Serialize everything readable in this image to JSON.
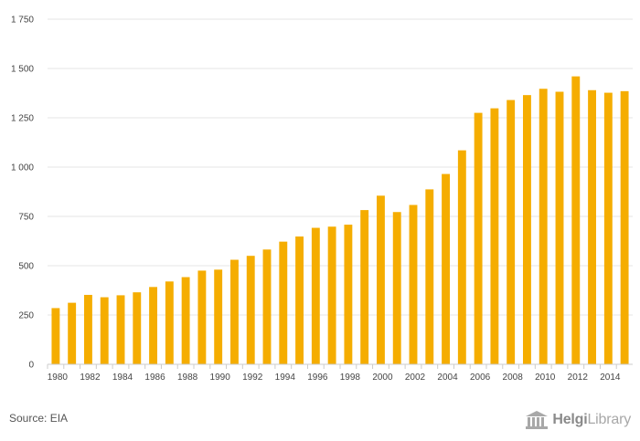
{
  "chart_data": {
    "type": "bar",
    "x": [
      1980,
      1981,
      1982,
      1983,
      1984,
      1985,
      1986,
      1987,
      1988,
      1989,
      1990,
      1991,
      1992,
      1993,
      1994,
      1995,
      1996,
      1997,
      1998,
      1999,
      2000,
      2001,
      2002,
      2003,
      2004,
      2005,
      2006,
      2007,
      2008,
      2009,
      2010,
      2011,
      2012,
      2013,
      2014,
      2015
    ],
    "values": [
      285,
      312,
      352,
      340,
      350,
      365,
      392,
      420,
      442,
      475,
      480,
      530,
      550,
      582,
      622,
      648,
      692,
      698,
      708,
      782,
      855,
      772,
      808,
      887,
      965,
      1085,
      1275,
      1298,
      1340,
      1365,
      1397,
      1382,
      1460,
      1390,
      1377,
      1385
    ],
    "x_tick_labels": [
      "1980",
      "1982",
      "1984",
      "1986",
      "1988",
      "1990",
      "1992",
      "1994",
      "1996",
      "1998",
      "2000",
      "2002",
      "2004",
      "2006",
      "2008",
      "2010",
      "2012",
      "2014"
    ],
    "y_ticks": [
      0,
      250,
      500,
      750,
      1000,
      1250,
      1500,
      1750
    ],
    "y_tick_labels": [
      "0",
      "250",
      "500",
      "750",
      "1 000",
      "1 250",
      "1 500",
      "1 750"
    ],
    "ylim": [
      0,
      1750
    ],
    "grid": true,
    "bar_color": "#f5ad00",
    "title": "",
    "xlabel": "",
    "ylabel": ""
  },
  "footer": {
    "source": "Source: EIA",
    "logo_bold": "Helgi",
    "logo_light": "Library"
  }
}
